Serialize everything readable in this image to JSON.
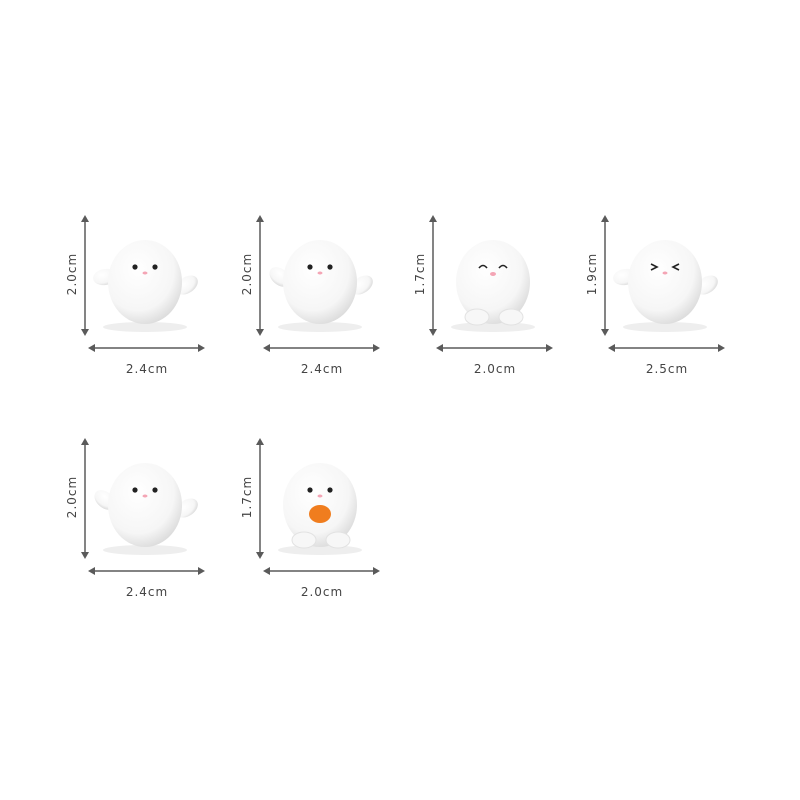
{
  "figures": [
    {
      "height_label": "2.0cm",
      "width_label": "2.4cm",
      "face": "dots",
      "pose": "wave-right"
    },
    {
      "height_label": "2.0cm",
      "width_label": "2.4cm",
      "face": "dots",
      "pose": "wave-both"
    },
    {
      "height_label": "1.7cm",
      "width_label": "2.0cm",
      "face": "smile",
      "pose": "hands-up"
    },
    {
      "height_label": "1.9cm",
      "width_label": "2.5cm",
      "face": "squint",
      "pose": "wave-right"
    },
    {
      "height_label": "2.0cm",
      "width_label": "2.4cm",
      "face": "dots",
      "pose": "wave-both"
    },
    {
      "height_label": "1.7cm",
      "width_label": "2.0cm",
      "face": "dots",
      "pose": "holding-orange"
    }
  ],
  "colors": {
    "arrow": "#5a5a5a",
    "label": "#444444",
    "orange": "#f07d1e",
    "blush": "#f4a5b5"
  }
}
